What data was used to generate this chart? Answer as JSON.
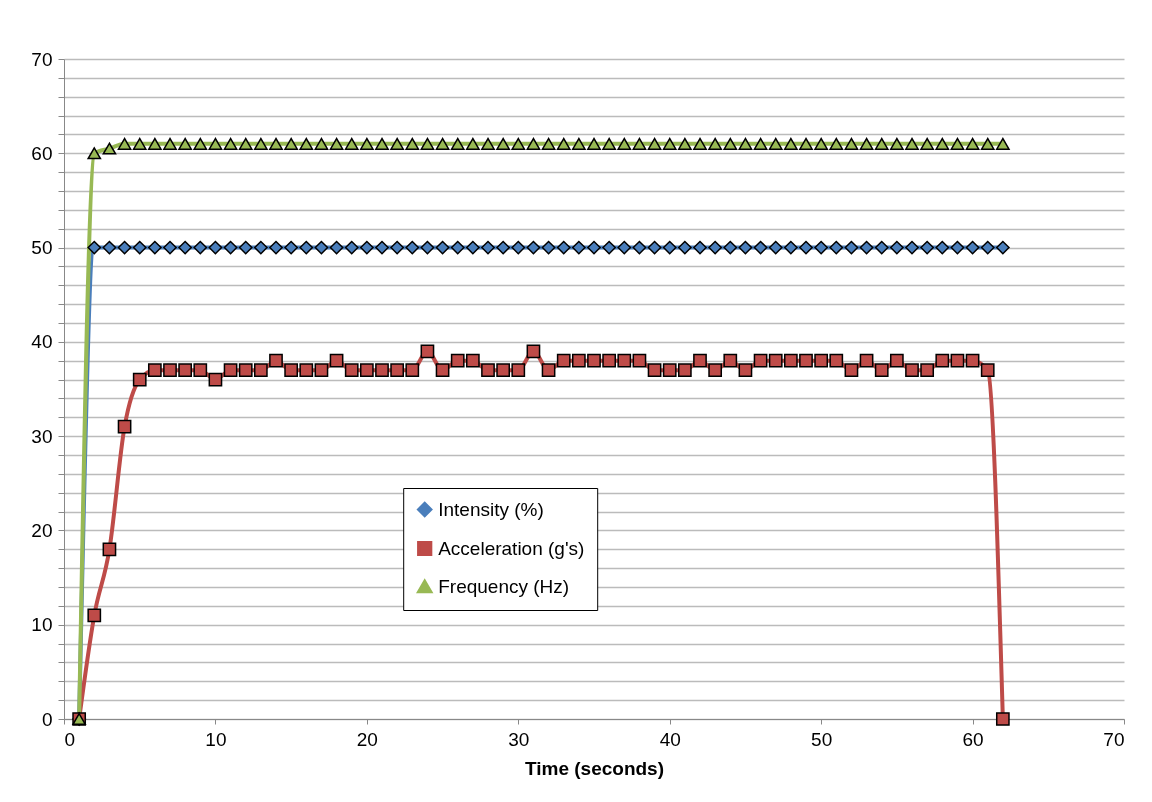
{
  "chart_data": {
    "type": "line",
    "xlabel": "Time (seconds)",
    "x": [
      1,
      2,
      3,
      4,
      5,
      6,
      7,
      8,
      9,
      10,
      11,
      12,
      13,
      14,
      15,
      16,
      17,
      18,
      19,
      20,
      21,
      22,
      23,
      24,
      25,
      26,
      27,
      28,
      29,
      30,
      31,
      32,
      33,
      34,
      35,
      36,
      37,
      38,
      39,
      40,
      41,
      42,
      43,
      44,
      45,
      46,
      47,
      48,
      49,
      50,
      51,
      52,
      53,
      54,
      55,
      56,
      57,
      58,
      59,
      60,
      61,
      62
    ],
    "series": [
      {
        "name": "Intensity (%)",
        "color": "#4a7ebb",
        "marker": "diamond",
        "values": [
          0,
          50,
          50,
          50,
          50,
          50,
          50,
          50,
          50,
          50,
          50,
          50,
          50,
          50,
          50,
          50,
          50,
          50,
          50,
          50,
          50,
          50,
          50,
          50,
          50,
          50,
          50,
          50,
          50,
          50,
          50,
          50,
          50,
          50,
          50,
          50,
          50,
          50,
          50,
          50,
          50,
          50,
          50,
          50,
          50,
          50,
          50,
          50,
          50,
          50,
          50,
          50,
          50,
          50,
          50,
          50,
          50,
          50,
          50,
          50,
          50,
          50
        ]
      },
      {
        "name": "Acceleration (g's)",
        "color": "#be4b48",
        "marker": "square",
        "values": [
          0,
          11,
          18,
          31,
          36,
          37,
          37,
          37,
          37,
          36,
          37,
          37,
          37,
          38,
          37,
          37,
          37,
          38,
          37,
          37,
          37,
          37,
          37,
          39,
          37,
          38,
          38,
          37,
          37,
          37,
          39,
          37,
          38,
          38,
          38,
          38,
          38,
          38,
          37,
          37,
          37,
          38,
          37,
          38,
          37,
          38,
          38,
          38,
          38,
          38,
          38,
          37,
          38,
          37,
          38,
          37,
          37,
          38,
          38,
          38,
          37,
          0
        ]
      },
      {
        "name": "Frequency (Hz)",
        "color": "#98b954",
        "marker": "triangle",
        "values": [
          0,
          60,
          60.5,
          61,
          61,
          61,
          61,
          61,
          61,
          61,
          61,
          61,
          61,
          61,
          61,
          61,
          61,
          61,
          61,
          61,
          61,
          61,
          61,
          61,
          61,
          61,
          61,
          61,
          61,
          61,
          61,
          61,
          61,
          61,
          61,
          61,
          61,
          61,
          61,
          61,
          61,
          61,
          61,
          61,
          61,
          61,
          61,
          61,
          61,
          61,
          61,
          61,
          61,
          61,
          61,
          61,
          61,
          61,
          61,
          61,
          61,
          61
        ]
      }
    ],
    "xlim": [
      0,
      70
    ],
    "xticks": [
      0,
      10,
      20,
      30,
      40,
      50,
      60,
      70
    ],
    "ylim": [
      0,
      70
    ],
    "yticks": [
      0,
      {
        "value": 2,
        "label": null
      },
      {
        "value": 4,
        "label": null
      },
      {
        "value": 6,
        "label": null
      },
      {
        "value": 8,
        "label": null
      },
      10,
      {
        "value": 12,
        "label": null
      },
      {
        "value": 14,
        "label": null
      },
      {
        "value": 16,
        "label": null
      },
      {
        "value": 18,
        "label": null
      },
      20,
      {
        "value": 22,
        "label": null
      },
      {
        "value": 24,
        "label": null
      },
      {
        "value": 26,
        "label": null
      },
      {
        "value": 28,
        "label": null
      },
      30,
      {
        "value": 32,
        "label": null
      },
      {
        "value": 34,
        "label": null
      },
      {
        "value": 36,
        "label": null
      },
      {
        "value": 38,
        "label": null
      },
      40,
      {
        "value": 42,
        "label": null
      },
      {
        "value": 44,
        "label": null
      },
      {
        "value": 46,
        "label": null
      },
      {
        "value": 48,
        "label": null
      },
      50,
      {
        "value": 52,
        "label": null
      },
      {
        "value": 54,
        "label": null
      },
      {
        "value": 56,
        "label": null
      },
      {
        "value": 58,
        "label": null
      },
      60,
      {
        "value": 62,
        "label": null
      },
      {
        "value": 64,
        "label": null
      },
      {
        "value": 66,
        "label": null
      },
      {
        "value": 68,
        "label": null
      },
      70
    ],
    "grid": "y",
    "legend": "bottom"
  }
}
